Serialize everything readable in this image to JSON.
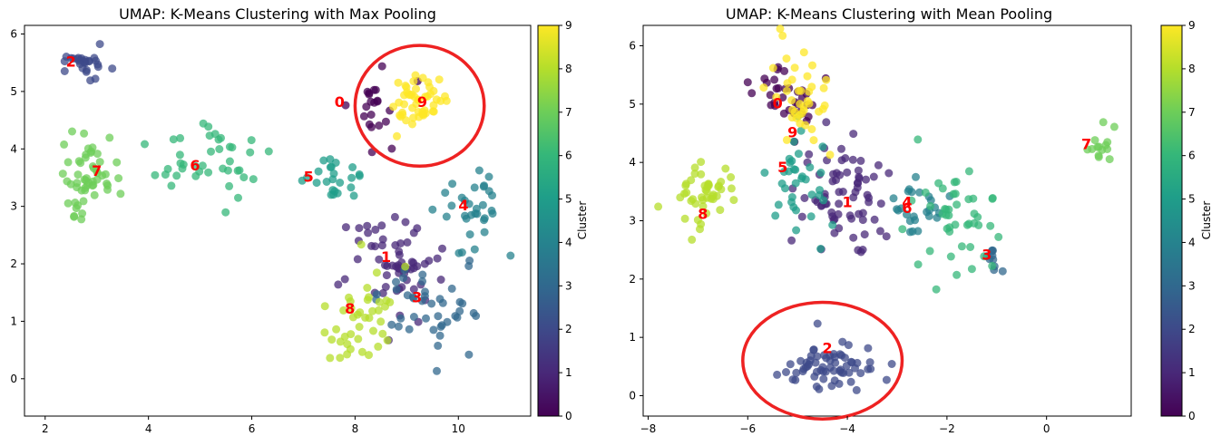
{
  "chart_data": [
    {
      "type": "scatter",
      "title": "UMAP: K-Means Clustering with Max Pooling",
      "xlim": [
        1.6,
        11.4
      ],
      "ylim": [
        -0.65,
        6.15
      ],
      "xticks": [
        2,
        4,
        6,
        8,
        10
      ],
      "yticks": [
        0,
        1,
        2,
        3,
        4,
        5,
        6
      ],
      "colorbar": {
        "label": "Cluster",
        "min": 0,
        "max": 9,
        "ticks": [
          0,
          1,
          2,
          3,
          4,
          5,
          6,
          7,
          8,
          9
        ]
      },
      "grid": false,
      "clusters": [
        {
          "cluster": 0,
          "label_at": [
            7.7,
            4.8
          ],
          "center": [
            8.2,
            4.7
          ],
          "spread": [
            0.55,
            0.6
          ],
          "n": 22
        },
        {
          "cluster": 1,
          "label_at": [
            8.6,
            2.1
          ],
          "center": [
            8.7,
            2.0
          ],
          "spread": [
            0.85,
            0.75
          ],
          "n": 60
        },
        {
          "cluster": 2,
          "label_at": [
            2.5,
            5.5
          ],
          "center": [
            2.8,
            5.5
          ],
          "spread": [
            0.55,
            0.25
          ],
          "n": 28
        },
        {
          "cluster": 3,
          "label_at": [
            9.2,
            1.4
          ],
          "center": [
            9.3,
            1.2
          ],
          "spread": [
            0.75,
            0.8
          ],
          "n": 42
        },
        {
          "cluster": 4,
          "label_at": [
            10.1,
            3.0
          ],
          "center": [
            10.2,
            3.0
          ],
          "spread": [
            0.55,
            0.6
          ],
          "n": 32
        },
        {
          "cluster": 5,
          "label_at": [
            7.1,
            3.5
          ],
          "center": [
            7.6,
            3.5
          ],
          "spread": [
            0.6,
            0.35
          ],
          "n": 24
        },
        {
          "cluster": 6,
          "label_at": [
            4.9,
            3.7
          ],
          "center": [
            5.2,
            3.8
          ],
          "spread": [
            1.0,
            0.65
          ],
          "n": 40
        },
        {
          "cluster": 7,
          "label_at": [
            3.0,
            3.6
          ],
          "center": [
            2.9,
            3.5
          ],
          "spread": [
            0.5,
            0.6
          ],
          "n": 55
        },
        {
          "cluster": 8,
          "label_at": [
            7.9,
            1.2
          ],
          "center": [
            8.1,
            1.0
          ],
          "spread": [
            0.6,
            0.8
          ],
          "n": 42
        },
        {
          "cluster": 9,
          "label_at": [
            9.3,
            4.8
          ],
          "center": [
            9.3,
            4.8
          ],
          "spread": [
            0.5,
            0.4
          ],
          "n": 50
        }
      ],
      "annotation": {
        "shape": "circle",
        "center": [
          9.25,
          4.75
        ],
        "radius_x": 1.25,
        "radius_y": 1.05,
        "color": "#ee2222"
      }
    },
    {
      "type": "scatter",
      "title": "UMAP: K-Means Clustering with Mean Pooling",
      "xlim": [
        -8.1,
        1.7
      ],
      "ylim": [
        -0.35,
        6.35
      ],
      "xticks": [
        -8,
        -6,
        -4,
        -2,
        0
      ],
      "yticks": [
        0,
        1,
        2,
        3,
        4,
        5,
        6
      ],
      "colorbar": {
        "label": "Cluster",
        "min": 0,
        "max": 9,
        "ticks": [
          0,
          1,
          2,
          3,
          4,
          5,
          6,
          7,
          8,
          9
        ]
      },
      "grid": false,
      "clusters": [
        {
          "cluster": 0,
          "label_at": [
            -5.4,
            5.0
          ],
          "center": [
            -5.3,
            5.1
          ],
          "spread": [
            0.55,
            0.45
          ],
          "n": 35
        },
        {
          "cluster": 1,
          "label_at": [
            -4.0,
            3.3
          ],
          "center": [
            -4.0,
            3.4
          ],
          "spread": [
            0.8,
            0.8
          ],
          "n": 70
        },
        {
          "cluster": 2,
          "label_at": [
            -4.4,
            0.8
          ],
          "center": [
            -4.4,
            0.5
          ],
          "spread": [
            0.75,
            0.35
          ],
          "n": 65
        },
        {
          "cluster": 3,
          "label_at": [
            -1.2,
            2.4
          ],
          "center": [
            -1.1,
            2.4
          ],
          "spread": [
            0.15,
            0.2
          ],
          "n": 10
        },
        {
          "cluster": 4,
          "label_at": [
            -2.8,
            3.3
          ],
          "center": [
            -2.6,
            3.2
          ],
          "spread": [
            0.45,
            0.5
          ],
          "n": 25
        },
        {
          "cluster": 5,
          "label_at": [
            -5.3,
            3.9
          ],
          "center": [
            -5.0,
            3.6
          ],
          "spread": [
            0.6,
            0.75
          ],
          "n": 35
        },
        {
          "cluster": 6,
          "label_at": [
            -2.8,
            3.2
          ],
          "center": [
            -1.9,
            3.0
          ],
          "spread": [
            0.8,
            0.9
          ],
          "n": 45
        },
        {
          "cluster": 7,
          "label_at": [
            0.8,
            4.3
          ],
          "center": [
            1.1,
            4.3
          ],
          "spread": [
            0.25,
            0.3
          ],
          "n": 14
        },
        {
          "cluster": 8,
          "label_at": [
            -6.9,
            3.1
          ],
          "center": [
            -6.9,
            3.4
          ],
          "spread": [
            0.6,
            0.45
          ],
          "n": 45
        },
        {
          "cluster": 9,
          "label_at": [
            -5.1,
            4.5
          ],
          "center": [
            -4.8,
            5.2
          ],
          "spread": [
            0.55,
            0.7
          ],
          "n": 40
        }
      ],
      "annotation": {
        "shape": "circle",
        "center": [
          -4.5,
          0.6
        ],
        "radius_x": 1.6,
        "radius_y": 1.0,
        "color": "#ee2222"
      }
    }
  ]
}
